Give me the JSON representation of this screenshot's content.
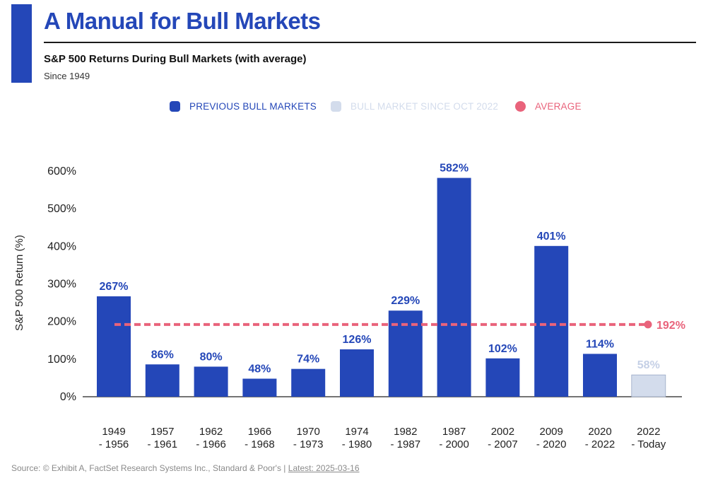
{
  "header": {
    "title": "A Manual for Bull Markets",
    "subtitle": "S&P 500 Returns During Bull Markets (with average)",
    "since": "Since 1949"
  },
  "legend": {
    "items": [
      {
        "label": "PREVIOUS BULL MARKETS",
        "color": "#2447b8"
      },
      {
        "label": "BULL MARKET SINCE OCT 2022",
        "color": "#d3dcec"
      },
      {
        "label": "AVERAGE",
        "color": "#e9637b"
      }
    ]
  },
  "colors": {
    "previous": "#2447b8",
    "current": "#d3dcec",
    "average": "#e9637b",
    "current_label": "#c5d0e6"
  },
  "chart_data": {
    "type": "bar",
    "categories": [
      [
        "1949",
        "- 1956"
      ],
      [
        "1957",
        "- 1961"
      ],
      [
        "1962",
        "- 1966"
      ],
      [
        "1966",
        "- 1968"
      ],
      [
        "1970",
        "- 1973"
      ],
      [
        "1974",
        "- 1980"
      ],
      [
        "1982",
        "- 1987"
      ],
      [
        "1987",
        "- 2000"
      ],
      [
        "2002",
        "- 2007"
      ],
      [
        "2009",
        "- 2020"
      ],
      [
        "2020",
        "- 2022"
      ],
      [
        "2022",
        "- Today"
      ]
    ],
    "values": [
      267,
      86,
      80,
      48,
      74,
      126,
      229,
      582,
      102,
      401,
      114,
      58
    ],
    "value_labels": [
      "267%",
      "86%",
      "80%",
      "48%",
      "74%",
      "126%",
      "229%",
      "582%",
      "102%",
      "401%",
      "114%",
      "58%"
    ],
    "current_index": 11,
    "average": 192,
    "average_label": "192%",
    "ylabel": "S&P 500 Return (%)",
    "ylim": [
      0,
      600
    ],
    "yticks": [
      0,
      100,
      200,
      300,
      400,
      500,
      600
    ],
    "ytick_labels": [
      "0%",
      "100%",
      "200%",
      "300%",
      "400%",
      "500%",
      "600%"
    ]
  },
  "source": {
    "text": "Source: © Exhibit A, FactSet Research Systems Inc., Standard & Poor's | ",
    "latest": "Latest: 2025-03-16"
  }
}
